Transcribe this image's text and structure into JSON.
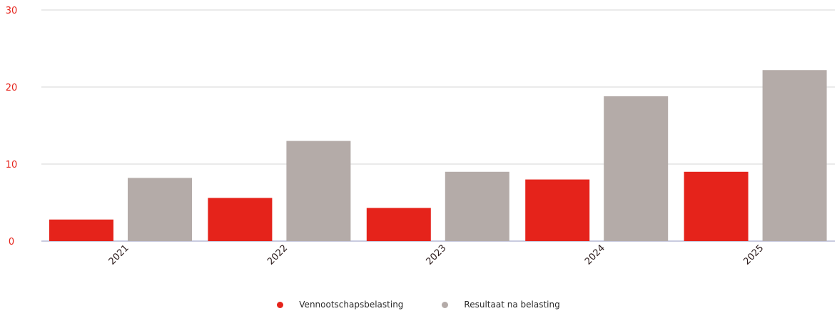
{
  "chart_data": {
    "type": "bar",
    "categories": [
      "2021",
      "2022",
      "2023",
      "2024",
      "2025"
    ],
    "series": [
      {
        "name": "Vennootschapsbelasting",
        "values": [
          2.8,
          5.6,
          4.3,
          8.0,
          9.0
        ],
        "color": "#e5231b"
      },
      {
        "name": "Resultaat na belasting",
        "values": [
          8.2,
          13.0,
          9.0,
          18.8,
          22.2
        ],
        "color": "#b4aba8"
      }
    ],
    "yticks": [
      "0",
      "10",
      "20",
      "30"
    ],
    "ylim": [
      0,
      30
    ],
    "grid": true,
    "legend_position": "bottom-center"
  }
}
